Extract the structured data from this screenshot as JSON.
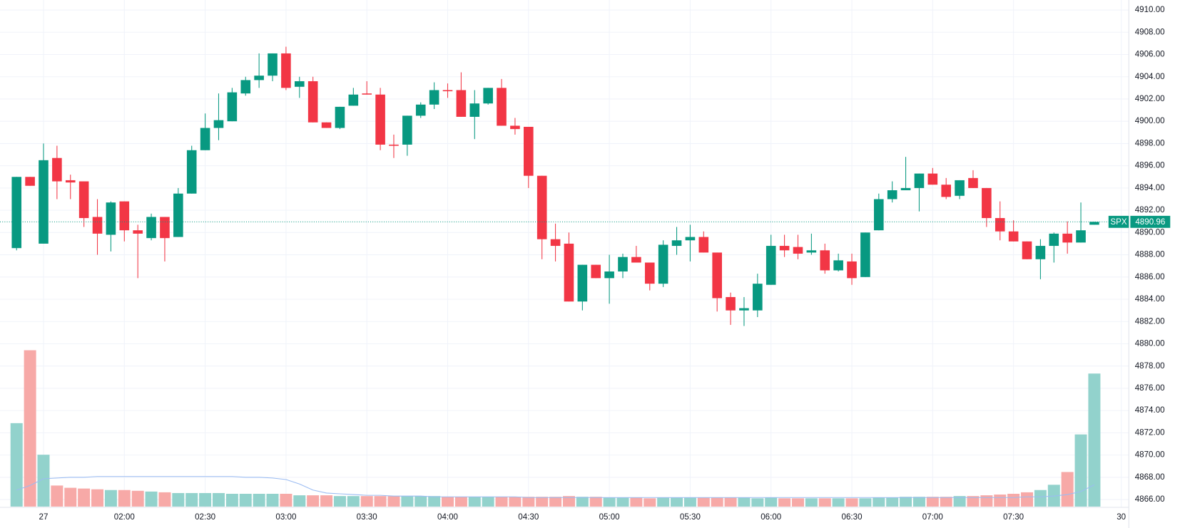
{
  "chart_data": {
    "type": "candlestick",
    "x": [
      80,
      85,
      90,
      95,
      100,
      105,
      110,
      115,
      120,
      125,
      130,
      135,
      140,
      145,
      150,
      155,
      160,
      165,
      170,
      175,
      180,
      185,
      190,
      195,
      200,
      205,
      210,
      215,
      220,
      225,
      230,
      235,
      240,
      245,
      250,
      255,
      260,
      265,
      270,
      275,
      280,
      285,
      290,
      295,
      300,
      305,
      310,
      315,
      320,
      325,
      330,
      335,
      340,
      345,
      350,
      355,
      360,
      365,
      370,
      375,
      380,
      385,
      390,
      395,
      400,
      405,
      410,
      415,
      420,
      425,
      430,
      435,
      440,
      445,
      450,
      455,
      460,
      465,
      470,
      475,
      480
    ],
    "open": [
      4888.6,
      4895.0,
      4889.0,
      4896.7,
      4894.7,
      4894.6,
      4891.4,
      4889.8,
      4892.8,
      4890.2,
      4889.5,
      4891.4,
      4889.6,
      4893.5,
      4897.4,
      4899.4,
      4900.0,
      4902.5,
      4903.7,
      4904.1,
      4906.1,
      4903.1,
      4903.6,
      4899.9,
      4899.4,
      4901.4,
      4902.5,
      4902.4,
      4897.9,
      4897.9,
      4900.5,
      4901.5,
      4902.8,
      4902.8,
      4900.4,
      4901.6,
      4903.0,
      4899.6,
      4899.5,
      4895.1,
      4889.4,
      4889.0,
      4883.8,
      4887.1,
      4885.9,
      4886.5,
      4887.8,
      4887.3,
      4885.4,
      4888.8,
      4889.3,
      4889.6,
      4888.2,
      4884.2,
      4883.0,
      4883.0,
      4885.3,
      4888.8,
      4888.7,
      4888.2,
      4888.4,
      4886.6,
      4887.4,
      4886.0,
      4890.2,
      4893.0,
      4893.8,
      4894.0,
      4895.3,
      4894.3,
      4893.3,
      4894.9,
      4894.0,
      4891.3,
      4890.1,
      4889.2,
      4887.6,
      4888.8,
      4889.9,
      4889.1,
      4890.7
    ],
    "high": [
      4895.0,
      4895.0,
      4898.0,
      4897.8,
      4895.2,
      4894.6,
      4893.0,
      4892.8,
      4892.8,
      4890.7,
      4891.7,
      4891.4,
      4894.0,
      4897.8,
      4900.7,
      4902.5,
      4903.0,
      4904.0,
      4906.1,
      4906.1,
      4906.7,
      4904.0,
      4904.0,
      4899.9,
      4901.3,
      4903.0,
      4903.6,
      4903.0,
      4898.8,
      4900.5,
      4901.7,
      4903.5,
      4903.4,
      4904.4,
      4902.8,
      4903.0,
      4903.8,
      4900.3,
      4899.5,
      4895.1,
      4890.8,
      4890.0,
      4887.1,
      4887.1,
      4888.0,
      4888.1,
      4888.8,
      4887.3,
      4889.3,
      4890.5,
      4890.7,
      4890.1,
      4888.2,
      4884.6,
      4884.2,
      4886.3,
      4889.8,
      4889.8,
      4889.8,
      4889.9,
      4889.0,
      4888.1,
      4888.1,
      4890.0,
      4893.5,
      4894.6,
      4896.8,
      4895.3,
      4895.8,
      4894.9,
      4894.7,
      4895.6,
      4894.0,
      4892.8,
      4891.1,
      4889.2,
      4889.4,
      4890.0,
      4891.0,
      4892.7,
      4890.96
    ],
    "low": [
      4888.4,
      4894.2,
      4889.0,
      4893.0,
      4893.0,
      4890.5,
      4888.0,
      4888.3,
      4889.2,
      4885.9,
      4889.3,
      4887.4,
      4889.6,
      4893.5,
      4897.4,
      4898.3,
      4900.0,
      4902.3,
      4903.0,
      4903.6,
      4902.8,
      4902.1,
      4899.9,
      4899.4,
      4899.3,
      4901.4,
      4902.4,
      4897.4,
      4896.7,
      4896.9,
      4900.3,
      4901.1,
      4902.1,
      4900.4,
      4898.4,
      4901.5,
      4899.6,
      4898.8,
      4894.0,
      4887.6,
      4887.4,
      4883.8,
      4883.0,
      4885.9,
      4883.6,
      4885.9,
      4887.3,
      4884.8,
      4885.1,
      4888.0,
      4887.4,
      4888.2,
      4882.9,
      4881.7,
      4881.6,
      4882.4,
      4885.3,
      4887.8,
      4887.6,
      4888.0,
      4886.3,
      4886.5,
      4885.3,
      4886.0,
      4890.2,
      4892.7,
      4893.8,
      4891.9,
      4894.3,
      4893.0,
      4893.0,
      4894.0,
      4890.5,
      4889.3,
      4889.2,
      4887.6,
      4885.8,
      4887.3,
      4888.1,
      4889.1,
      4890.7
    ],
    "close": [
      4895.0,
      4894.2,
      4896.5,
      4894.6,
      4894.5,
      4891.3,
      4889.9,
      4892.7,
      4890.2,
      4889.9,
      4891.4,
      4889.5,
      4893.5,
      4897.4,
      4899.4,
      4900.1,
      4902.6,
      4903.7,
      4904.1,
      4906.1,
      4903.0,
      4903.6,
      4899.9,
      4899.4,
      4901.3,
      4902.4,
      4902.4,
      4897.9,
      4897.8,
      4900.5,
      4901.5,
      4902.8,
      4902.75,
      4900.4,
      4901.6,
      4903.0,
      4899.6,
      4899.3,
      4895.1,
      4889.4,
      4888.8,
      4883.8,
      4887.1,
      4885.9,
      4886.5,
      4887.8,
      4887.3,
      4885.4,
      4888.9,
      4889.3,
      4889.6,
      4888.2,
      4884.1,
      4883.0,
      4883.2,
      4885.4,
      4888.8,
      4888.4,
      4888.1,
      4888.4,
      4886.6,
      4887.5,
      4885.9,
      4890.0,
      4893.0,
      4893.8,
      4894.0,
      4895.3,
      4894.3,
      4893.2,
      4894.7,
      4894.0,
      4891.3,
      4890.1,
      4889.2,
      4887.6,
      4888.8,
      4889.9,
      4889.1,
      4890.2,
      4890.96
    ],
    "volume": [
      111,
      208,
      69,
      28,
      25,
      24,
      23,
      22,
      22,
      21,
      20,
      19,
      18,
      18,
      18,
      18,
      17,
      17,
      17,
      17,
      17,
      15,
      15,
      15,
      14,
      14,
      14,
      14,
      14,
      14,
      14,
      14,
      13,
      13,
      13,
      13,
      13,
      13,
      13,
      13,
      13,
      14,
      13,
      13,
      12,
      12,
      12,
      11,
      12,
      12,
      12,
      12,
      12,
      12,
      12,
      11,
      12,
      11,
      11,
      11,
      11,
      11,
      11,
      11,
      12,
      12,
      13,
      13,
      13,
      13,
      14,
      14,
      15,
      16,
      17,
      19,
      22,
      29,
      46,
      96,
      177
    ],
    "volume_ma": [
      22,
      28,
      37,
      38,
      39,
      39,
      40,
      40,
      40,
      40,
      40,
      40,
      40,
      40,
      40,
      40,
      40,
      39,
      39,
      38,
      36,
      30,
      22,
      18,
      17,
      16,
      15,
      15,
      14,
      14,
      14,
      13,
      13,
      13,
      13,
      13,
      13,
      13,
      12,
      12,
      12,
      12,
      12,
      12,
      12,
      12,
      12,
      12,
      12,
      12,
      12,
      12,
      12,
      12,
      12,
      12,
      12,
      12,
      12,
      12,
      12,
      12,
      12,
      12,
      12,
      12,
      12,
      12,
      12,
      12,
      12,
      12,
      12,
      12,
      12,
      13,
      13,
      14,
      16,
      20,
      29
    ],
    "up_color": "#089981",
    "down_color": "#f23645",
    "volume_up_color": "#92d2cc",
    "volume_down_color": "#f7a9a7",
    "volume_ma_color": "#9bbcf2",
    "grid": true,
    "grid_color": "#f0f3fa",
    "xlim": [
      73.85,
      492.8
    ],
    "xticks": [
      {
        "value": 90,
        "label": "27"
      },
      {
        "value": 120,
        "label": "02:00"
      },
      {
        "value": 150,
        "label": "02:30"
      },
      {
        "value": 180,
        "label": "03:00"
      },
      {
        "value": 210,
        "label": "03:30"
      },
      {
        "value": 240,
        "label": "04:00"
      },
      {
        "value": 270,
        "label": "04:30"
      },
      {
        "value": 300,
        "label": "05:00"
      },
      {
        "value": 330,
        "label": "05:30"
      },
      {
        "value": 360,
        "label": "06:00"
      },
      {
        "value": 390,
        "label": "06:30"
      },
      {
        "value": 420,
        "label": "07:00"
      },
      {
        "value": 450,
        "label": "07:30"
      },
      {
        "value": 490,
        "label": "30"
      }
    ],
    "ylim": [
      4865.3,
      4910.9
    ],
    "yticks": [
      {
        "value": 4866,
        "label": "4866.00"
      },
      {
        "value": 4868,
        "label": "4868.00"
      },
      {
        "value": 4870,
        "label": "4870.00"
      },
      {
        "value": 4872,
        "label": "4872.00"
      },
      {
        "value": 4874,
        "label": "4874.00"
      },
      {
        "value": 4876,
        "label": "4876.00"
      },
      {
        "value": 4878,
        "label": "4878.00"
      },
      {
        "value": 4880,
        "label": "4880.00"
      },
      {
        "value": 4882,
        "label": "4882.00"
      },
      {
        "value": 4884,
        "label": "4884.00"
      },
      {
        "value": 4886,
        "label": "4886.00"
      },
      {
        "value": 4888,
        "label": "4888.00"
      },
      {
        "value": 4890,
        "label": "4890.00"
      },
      {
        "value": 4892,
        "label": "4892.00"
      },
      {
        "value": 4894,
        "label": "4894.00"
      },
      {
        "value": 4896,
        "label": "4896.00"
      },
      {
        "value": 4898,
        "label": "4898.00"
      },
      {
        "value": 4900,
        "label": "4900.00"
      },
      {
        "value": 4902,
        "label": "4902.00"
      },
      {
        "value": 4904,
        "label": "4904.00"
      },
      {
        "value": 4906,
        "label": "4906.00"
      },
      {
        "value": 4908,
        "label": "4908.00"
      },
      {
        "value": 4910,
        "label": "4910.00"
      }
    ],
    "last": {
      "label": "SPX",
      "value": 4890.96
    }
  }
}
